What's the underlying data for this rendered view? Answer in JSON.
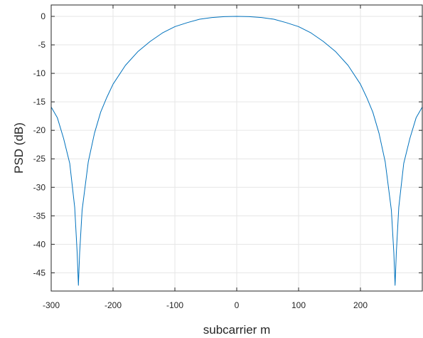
{
  "chart_data": {
    "type": "line",
    "title": "",
    "xlabel": "subcarrier m",
    "ylabel": "PSD (dB)",
    "xlim": [
      -300,
      300
    ],
    "ylim": [
      -48.2,
      2
    ],
    "xticks": [
      -300,
      -200,
      -100,
      0,
      100,
      200
    ],
    "yticks": [
      0,
      -5,
      -10,
      -15,
      -20,
      -25,
      -30,
      -35,
      -40,
      -45
    ],
    "grid": true,
    "legend": "none",
    "colors": {
      "line": "#0072bd",
      "grid": "#e6e6e6",
      "axes": "#262626"
    },
    "series": [
      {
        "x": [
          -300,
          -290,
          -280,
          -270,
          -262,
          -258,
          -256,
          -254,
          -250,
          -240,
          -230,
          -220,
          -210,
          -200,
          -180,
          -160,
          -140,
          -120,
          -100,
          -80,
          -60,
          -40,
          -20,
          0,
          20,
          40,
          60,
          80,
          100,
          120,
          140,
          160,
          180,
          200,
          210,
          220,
          230,
          240,
          250,
          254,
          256,
          258,
          262,
          270,
          280,
          290,
          300
        ],
        "y": [
          -15.9,
          -17.8,
          -21.4,
          -25.8,
          -33.5,
          -41.5,
          -47.2,
          -41.5,
          -34.0,
          -25.5,
          -20.5,
          -16.8,
          -14.2,
          -11.9,
          -8.6,
          -6.2,
          -4.4,
          -2.9,
          -1.8,
          -1.1,
          -0.5,
          -0.2,
          -0.05,
          0,
          -0.05,
          -0.2,
          -0.5,
          -1.1,
          -1.8,
          -2.9,
          -4.4,
          -6.2,
          -8.6,
          -11.9,
          -14.2,
          -16.8,
          -20.5,
          -25.5,
          -34.0,
          -41.5,
          -47.2,
          -41.5,
          -33.5,
          -25.8,
          -21.4,
          -17.8,
          -15.9
        ]
      }
    ]
  }
}
